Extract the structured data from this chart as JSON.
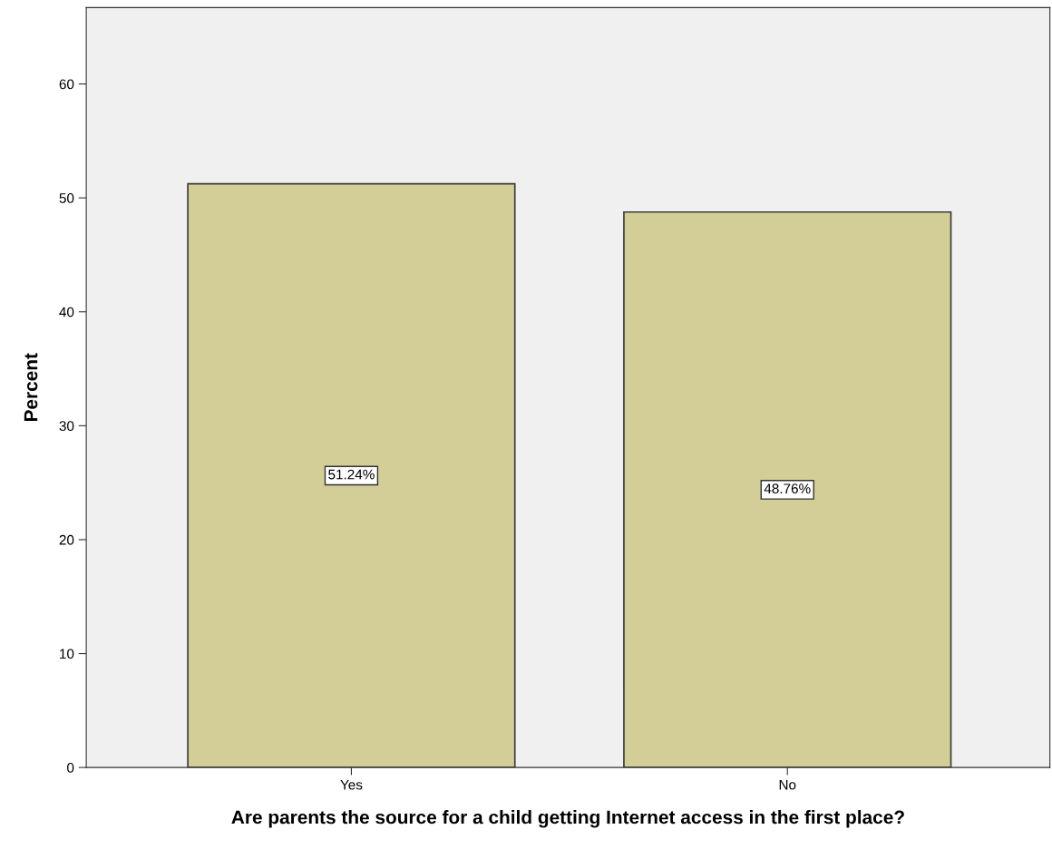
{
  "chart_data": {
    "type": "bar",
    "xlabel": "Are parents the source for a child getting Internet access in the first place?",
    "ylabel": "Percent",
    "categories": [
      "Yes",
      "No"
    ],
    "values": [
      51.24,
      48.76
    ],
    "value_labels": [
      "51.24%",
      "48.76%"
    ],
    "color": "#d3ce97",
    "ylim": [
      0,
      66.7
    ],
    "yticks": [
      0,
      10,
      20,
      30,
      40,
      50,
      60
    ],
    "grid": false
  }
}
